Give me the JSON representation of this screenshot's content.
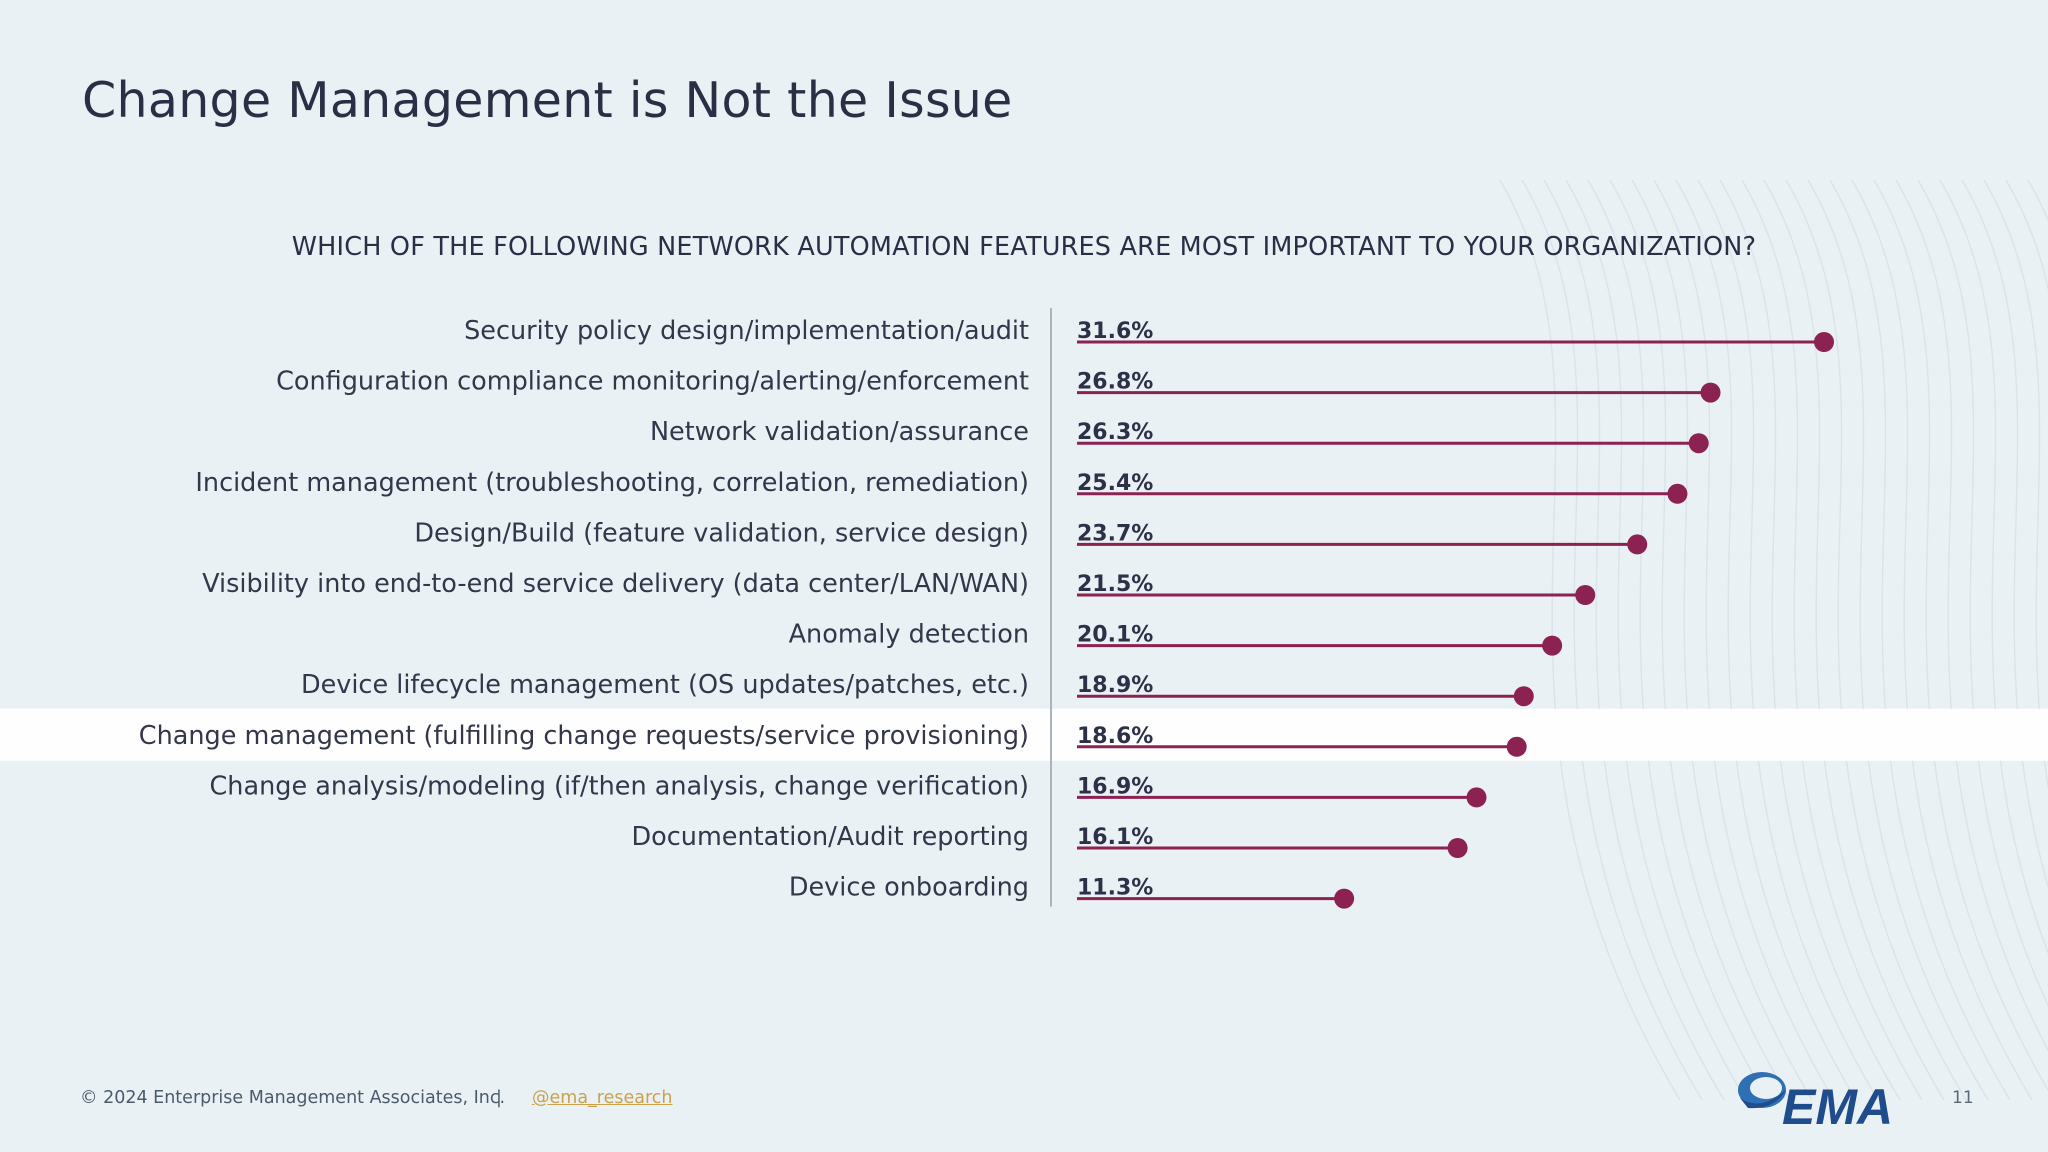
{
  "slide": {
    "title": "Change Management is Not the Issue",
    "question": "WHICH OF THE FOLLOWING NETWORK AUTOMATION FEATURES ARE MOST IMPORTANT TO YOUR ORGANIZATION?",
    "highlighted_category": "Change management (fulfilling change requests/service provisioning)"
  },
  "chart_data": {
    "type": "bar",
    "style": "lollipop",
    "orientation": "horizontal",
    "title": "WHICH OF THE FOLLOWING NETWORK AUTOMATION FEATURES ARE MOST IMPORTANT TO YOUR ORGANIZATION?",
    "categories": [
      "Security policy design/implementation/audit",
      "Configuration compliance monitoring/alerting/enforcement",
      "Network validation/assurance",
      "Incident management (troubleshooting, correlation, remediation)",
      "Design/Build (feature validation, service design)",
      "Visibility into end-to-end service delivery (data center/LAN/WAN)",
      "Anomaly detection",
      "Device lifecycle management (OS updates/patches, etc.)",
      "Change management (fulfilling change requests/service provisioning)",
      "Change analysis/modeling (if/then analysis, change verification)",
      "Documentation/Audit reporting",
      "Device onboarding"
    ],
    "values": [
      31.6,
      26.8,
      26.3,
      25.4,
      23.7,
      21.5,
      20.1,
      18.9,
      18.6,
      16.9,
      16.1,
      11.3
    ],
    "value_labels": [
      "31.6%",
      "26.8%",
      "26.3%",
      "25.4%",
      "23.7%",
      "21.5%",
      "20.1%",
      "18.9%",
      "18.6%",
      "16.9%",
      "16.1%",
      "11.3%"
    ],
    "unit": "%",
    "xlim": [
      0,
      31.6
    ],
    "grid": false,
    "color": "#8b2252"
  },
  "footer": {
    "copyright": "© 2024 Enterprise Management Associates, Inc.",
    "separator": "|",
    "handle": "@ema_research",
    "logo_text": "EMA",
    "page_number": "11"
  },
  "colors": {
    "background": "#eaf1f5",
    "accent": "#8b2252",
    "highlight_row": "#ffffff",
    "logo": "#1f4d8c",
    "link": "#c9a24b"
  }
}
